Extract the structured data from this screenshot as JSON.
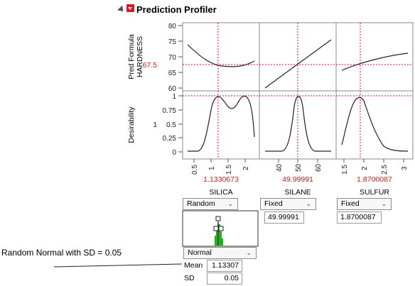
{
  "title": "Prediction Profiler",
  "response": {
    "ylabel_line1": "Pred Formula",
    "ylabel_line2": "HARDNESS",
    "current_value": "67.5",
    "ticks": [
      "80",
      "75",
      "70",
      "65",
      "60"
    ]
  },
  "desirability": {
    "ylabel": "Desirability",
    "current_value": "1",
    "ticks": [
      "1",
      "0.75",
      "0.5",
      "0.25",
      "0"
    ]
  },
  "factors": [
    {
      "name": "SILICA",
      "value": "1.1330673",
      "ticks": [
        "0.5",
        "1",
        "1.5",
        "2"
      ],
      "mode": "Random",
      "mode_value": ""
    },
    {
      "name": "SILANE",
      "value": "49.99991",
      "ticks": [
        "40",
        "50",
        "60"
      ],
      "mode": "Fixed",
      "mode_value": "49.99991"
    },
    {
      "name": "SULFUR",
      "value": "1.8700087",
      "ticks": [
        "1.5",
        "2",
        "2.5",
        "3"
      ],
      "mode": "Fixed",
      "mode_value": "1.8700087"
    }
  ],
  "distribution": {
    "type": "Normal",
    "mean_label": "Mean",
    "mean_value": "1.13307",
    "sd_label": "SD",
    "sd_value": "0.05"
  },
  "annotation": "Random Normal with SD = 0.05",
  "colors": {
    "accent_red": "#e0141e",
    "curve": "#222222",
    "histogram": "#22b022"
  }
}
